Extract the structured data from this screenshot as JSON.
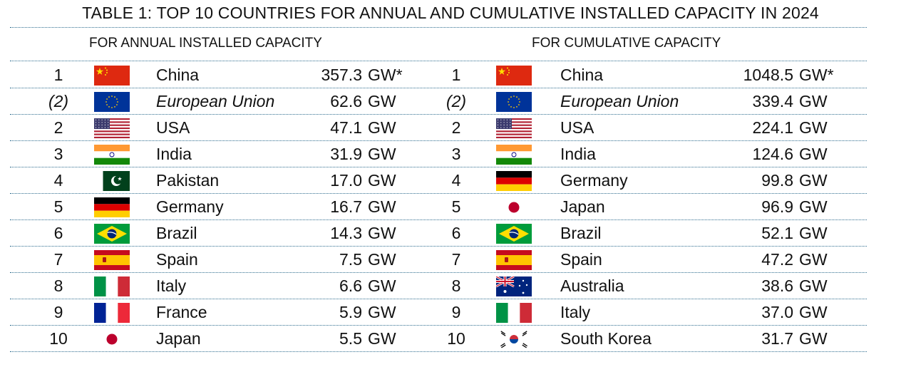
{
  "title": "TABLE 1: TOP 10 COUNTRIES FOR ANNUAL AND CUMULATIVE INSTALLED CAPACITY IN 2024",
  "annual": {
    "heading": "FOR ANNUAL INSTALLED CAPACITY",
    "rows": [
      {
        "rank": "1",
        "flag": "china-flag-icon",
        "name": "China",
        "value": "357.3",
        "unit": "GW*"
      },
      {
        "rank": "(2)",
        "flag": "eu-flag-icon",
        "name": "European Union",
        "value": "62.6",
        "unit": "GW"
      },
      {
        "rank": "2",
        "flag": "usa-flag-icon",
        "name": "USA",
        "value": "47.1",
        "unit": "GW"
      },
      {
        "rank": "3",
        "flag": "india-flag-icon",
        "name": "India",
        "value": "31.9",
        "unit": "GW"
      },
      {
        "rank": "4",
        "flag": "pakistan-flag-icon",
        "name": "Pakistan",
        "value": "17.0",
        "unit": "GW"
      },
      {
        "rank": "5",
        "flag": "germany-flag-icon",
        "name": "Germany",
        "value": "16.7",
        "unit": "GW"
      },
      {
        "rank": "6",
        "flag": "brazil-flag-icon",
        "name": "Brazil",
        "value": "14.3",
        "unit": "GW"
      },
      {
        "rank": "7",
        "flag": "spain-flag-icon",
        "name": "Spain",
        "value": "7.5",
        "unit": "GW"
      },
      {
        "rank": "8",
        "flag": "italy-flag-icon",
        "name": "Italy",
        "value": "6.6",
        "unit": "GW"
      },
      {
        "rank": "9",
        "flag": "france-flag-icon",
        "name": "France",
        "value": "5.9",
        "unit": "GW"
      },
      {
        "rank": "10",
        "flag": "japan-flag-icon",
        "name": "Japan",
        "value": "5.5",
        "unit": "GW"
      }
    ]
  },
  "cumulative": {
    "heading": "FOR CUMULATIVE CAPACITY",
    "rows": [
      {
        "rank": "1",
        "flag": "china-flag-icon",
        "name": "China",
        "value": "1048.5",
        "unit": "GW*"
      },
      {
        "rank": "(2)",
        "flag": "eu-flag-icon",
        "name": "European Union",
        "value": "339.4",
        "unit": "GW"
      },
      {
        "rank": "2",
        "flag": "usa-flag-icon",
        "name": "USA",
        "value": "224.1",
        "unit": "GW"
      },
      {
        "rank": "3",
        "flag": "india-flag-icon",
        "name": "India",
        "value": "124.6",
        "unit": "GW"
      },
      {
        "rank": "4",
        "flag": "germany-flag-icon",
        "name": "Germany",
        "value": "99.8",
        "unit": "GW"
      },
      {
        "rank": "5",
        "flag": "japan-flag-icon",
        "name": "Japan",
        "value": "96.9",
        "unit": "GW"
      },
      {
        "rank": "6",
        "flag": "brazil-flag-icon",
        "name": "Brazil",
        "value": "52.1",
        "unit": "GW"
      },
      {
        "rank": "7",
        "flag": "spain-flag-icon",
        "name": "Spain",
        "value": "47.2",
        "unit": "GW"
      },
      {
        "rank": "8",
        "flag": "australia-flag-icon",
        "name": "Australia",
        "value": "38.6",
        "unit": "GW"
      },
      {
        "rank": "9",
        "flag": "italy-flag-icon",
        "name": "Italy",
        "value": "37.0",
        "unit": "GW"
      },
      {
        "rank": "10",
        "flag": "south-korea-flag-icon",
        "name": "South Korea",
        "value": "31.7",
        "unit": "GW"
      }
    ]
  }
}
